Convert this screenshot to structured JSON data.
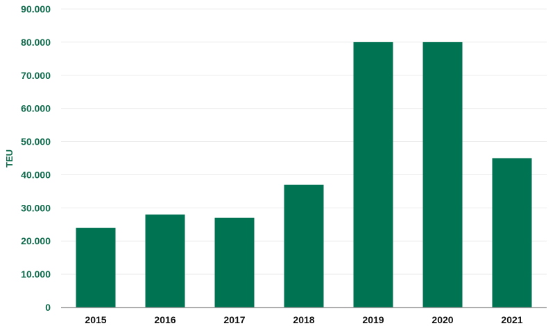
{
  "chart_data": {
    "type": "bar",
    "categories": [
      "2015",
      "2016",
      "2017",
      "2018",
      "2019",
      "2020",
      "2021"
    ],
    "values": [
      24000,
      28000,
      27000,
      37000,
      80000,
      80000,
      45000
    ],
    "ylabel": "TEU",
    "ylim": [
      0,
      90000
    ],
    "yticks": [
      0,
      10000,
      20000,
      30000,
      40000,
      50000,
      60000,
      70000,
      80000,
      90000
    ],
    "ytick_labels": [
      "0",
      "10.000",
      "20.000",
      "30.000",
      "40.000",
      "50.000",
      "60.000",
      "70.000",
      "80.000",
      "90.000"
    ],
    "grid": true,
    "legend": "none"
  },
  "colors": {
    "bar": "#007352",
    "tick_text": "#0e6b4b",
    "category_text": "#111111",
    "gridline": "#ececec",
    "axis": "#9a9a9a"
  }
}
